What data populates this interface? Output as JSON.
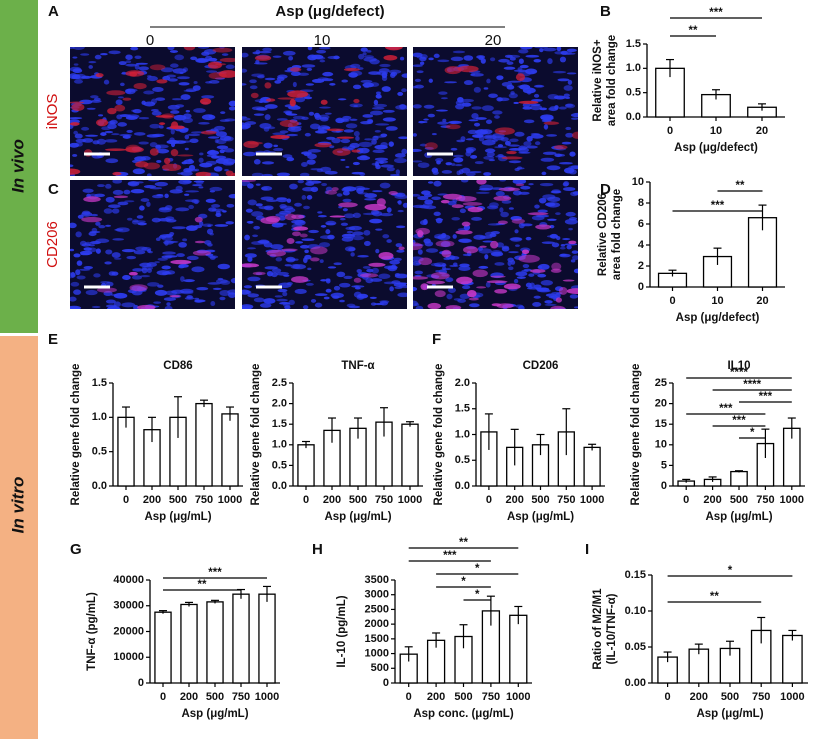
{
  "side_labels": [
    "In vivo",
    "In vitro"
  ],
  "panel_labels": [
    "A",
    "B",
    "C",
    "D",
    "E",
    "F",
    "G",
    "H",
    "I"
  ],
  "images": {
    "title": "Asp (μg/defect)",
    "columns": [
      "0",
      "10",
      "20"
    ],
    "rows": [
      "iNOS",
      "CD206"
    ]
  },
  "chart_data": [
    {
      "type": "bar",
      "ylabel": [
        "Relative iNOS+",
        "area fold change"
      ],
      "xlabel": "Asp (μg/defect)",
      "categories": [
        "0",
        "10",
        "20"
      ],
      "values": [
        1.0,
        0.46,
        0.2
      ],
      "errors": [
        0.18,
        0.1,
        0.07
      ],
      "ylim": [
        0,
        1.5
      ],
      "yticks": [
        {
          "value": 0,
          "label": "0.0"
        },
        0.5,
        {
          "value": 1,
          "label": "1.0"
        },
        1.5
      ],
      "color": "#ffffff",
      "edgecolor": "#000000",
      "significance": [
        {
          "from": "0",
          "to": "10",
          "label": "**"
        },
        {
          "from": "0",
          "to": "20",
          "label": "***"
        }
      ]
    },
    {
      "type": "bar",
      "ylabel": [
        "Relative CD206",
        "area fold change"
      ],
      "xlabel": "Asp (μg/defect)",
      "categories": [
        "0",
        "10",
        "20"
      ],
      "values": [
        1.3,
        2.9,
        6.6
      ],
      "errors": [
        0.3,
        0.8,
        1.2
      ],
      "ylim": [
        0,
        10
      ],
      "yticks": [
        0,
        2,
        4,
        6,
        8,
        10
      ],
      "color": "#ffffff",
      "edgecolor": "#000000",
      "significance": [
        {
          "from": "0",
          "to": "20",
          "label": "***"
        },
        {
          "from": "10",
          "to": "20",
          "label": "**"
        }
      ]
    },
    {
      "type": "bar",
      "title": "CD86",
      "ylabel": [
        "Relative gene fold change"
      ],
      "xlabel": "Asp (μg/mL)",
      "categories": [
        "0",
        "200",
        "500",
        "750",
        "1000"
      ],
      "values": [
        1.0,
        0.82,
        1.0,
        1.2,
        1.05
      ],
      "errors": [
        0.15,
        0.18,
        0.3,
        0.05,
        0.1
      ],
      "ylim": [
        0,
        1.5
      ],
      "yticks": [
        {
          "value": 0,
          "label": "0.0"
        },
        0.5,
        {
          "value": 1,
          "label": "1.0"
        },
        1.5
      ],
      "color": "#ffffff",
      "edgecolor": "#000000",
      "significance": []
    },
    {
      "type": "bar",
      "title": "TNF-α",
      "ylabel": [
        "Relative gene fold change"
      ],
      "xlabel": "Asp (μg/mL)",
      "categories": [
        "0",
        "200",
        "500",
        "750",
        "1000"
      ],
      "values": [
        1.0,
        1.35,
        1.4,
        1.55,
        1.5
      ],
      "errors": [
        0.08,
        0.3,
        0.25,
        0.35,
        0.06
      ],
      "ylim": [
        0,
        2.5
      ],
      "yticks": [
        {
          "value": 0,
          "label": "0.0"
        },
        0.5,
        {
          "value": 1,
          "label": "1.0"
        },
        1.5,
        {
          "value": 2,
          "label": "2.0"
        },
        2.5
      ],
      "color": "#ffffff",
      "edgecolor": "#000000",
      "significance": []
    },
    {
      "type": "bar",
      "title": "CD206",
      "ylabel": [
        "Relative gene fold change"
      ],
      "xlabel": "Asp (μg/mL)",
      "categories": [
        "0",
        "200",
        "500",
        "750",
        "1000"
      ],
      "values": [
        1.05,
        0.75,
        0.8,
        1.05,
        0.75
      ],
      "errors": [
        0.35,
        0.35,
        0.2,
        0.45,
        0.06
      ],
      "ylim": [
        0,
        2
      ],
      "yticks": [
        {
          "value": 0,
          "label": "0.0"
        },
        0.5,
        {
          "value": 1,
          "label": "1.0"
        },
        1.5,
        {
          "value": 2,
          "label": "2.0"
        }
      ],
      "color": "#ffffff",
      "edgecolor": "#000000",
      "significance": []
    },
    {
      "type": "bar",
      "title": "IL10",
      "ylabel": [
        "Relative gene fold change"
      ],
      "xlabel": "Asp (μg/mL)",
      "categories": [
        "0",
        "200",
        "500",
        "750",
        "1000"
      ],
      "values": [
        1.2,
        1.6,
        3.5,
        10.3,
        14
      ],
      "errors": [
        0.4,
        0.6,
        0.2,
        3.5,
        2.5
      ],
      "ylim": [
        0,
        25
      ],
      "yticks": [
        0,
        5,
        10,
        15,
        20,
        25
      ],
      "color": "#ffffff",
      "edgecolor": "#000000",
      "significance": [
        {
          "from": "500",
          "to": "750",
          "label": "*"
        },
        {
          "from": "200",
          "to": "750",
          "label": "***"
        },
        {
          "from": "0",
          "to": "750",
          "label": "***"
        },
        {
          "from": "500",
          "to": "1000",
          "label": "***"
        },
        {
          "from": "200",
          "to": "1000",
          "label": "****"
        },
        {
          "from": "0",
          "to": "1000",
          "label": "****"
        }
      ]
    },
    {
      "type": "bar",
      "ylabel": [
        "TNF-α (pg/mL)"
      ],
      "xlabel": "Asp (μg/mL)",
      "categories": [
        "0",
        "200",
        "500",
        "750",
        "1000"
      ],
      "values": [
        27500,
        30500,
        31500,
        34500,
        34500
      ],
      "errors": [
        600,
        800,
        600,
        1800,
        3000
      ],
      "ylim": [
        0,
        40000
      ],
      "yticks": [
        0,
        10000,
        20000,
        30000,
        40000
      ],
      "color": "#ffffff",
      "edgecolor": "#000000",
      "significance": [
        {
          "from": "0",
          "to": "750",
          "label": "**"
        },
        {
          "from": "0",
          "to": "1000",
          "label": "***"
        }
      ]
    },
    {
      "type": "bar",
      "ylabel": [
        "IL-10 (pg/mL)"
      ],
      "xlabel": "Asp conc. (μg/mL)",
      "categories": [
        "0",
        "200",
        "500",
        "750",
        "1000"
      ],
      "values": [
        980,
        1450,
        1580,
        2450,
        2300
      ],
      "errors": [
        250,
        250,
        400,
        500,
        300
      ],
      "ylim": [
        0,
        3500
      ],
      "yticks": [
        0,
        500,
        1000,
        1500,
        2000,
        2500,
        3000,
        3500
      ],
      "color": "#ffffff",
      "edgecolor": "#000000",
      "significance": [
        {
          "from": "500",
          "to": "750",
          "label": "*"
        },
        {
          "from": "200",
          "to": "750",
          "label": "*"
        },
        {
          "from": "200",
          "to": "1000",
          "label": "*"
        },
        {
          "from": "0",
          "to": "750",
          "label": "***"
        },
        {
          "from": "0",
          "to": "1000",
          "label": "**"
        }
      ]
    },
    {
      "type": "bar",
      "ylabel": [
        "Ratio of M2/M1",
        "(IL-10/TNF-α)"
      ],
      "xlabel": "Asp (μg/mL)",
      "categories": [
        "0",
        "200",
        "500",
        "750",
        "1000"
      ],
      "values": [
        0.036,
        0.047,
        0.048,
        0.073,
        0.066
      ],
      "errors": [
        0.007,
        0.007,
        0.01,
        0.018,
        0.007
      ],
      "ylim": [
        0,
        0.15
      ],
      "yticks": [
        {
          "value": 0,
          "label": "0.00"
        },
        0.05,
        {
          "value": 0.1,
          "label": "0.10"
        },
        0.15
      ],
      "color": "#ffffff",
      "edgecolor": "#000000",
      "significance": [
        {
          "from": "0",
          "to": "750",
          "label": "**"
        },
        {
          "from": "0",
          "to": "1000",
          "label": "*"
        }
      ]
    }
  ]
}
